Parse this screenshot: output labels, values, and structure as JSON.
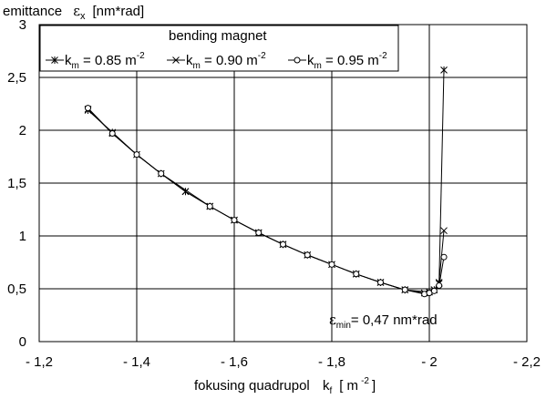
{
  "chart_data": {
    "type": "line",
    "ylabel_main": "emittance",
    "ylabel_sym": "ε",
    "ylabel_sub": "x",
    "ylabel_unit": "[nm*rad]",
    "xlabel_main": "fokusing quadrupol",
    "xlabel_sym": "k",
    "xlabel_sub": "f",
    "xlabel_unit_open": "[ m",
    "xlabel_unit_exp": "-2",
    "xlabel_unit_close": "]",
    "xlim": [
      -1.2,
      -2.2
    ],
    "ylim": [
      0,
      3
    ],
    "x_ticks": [
      -1.2,
      -1.4,
      -1.6,
      -1.8,
      -2.0,
      -2.2
    ],
    "x_tick_labels": [
      "- 1,2",
      "- 1,4",
      "- 1,6",
      "- 1,8",
      "- 2",
      "- 2,2"
    ],
    "y_ticks": [
      0,
      0.5,
      1,
      1.5,
      2,
      2.5,
      3
    ],
    "y_tick_labels": [
      "0",
      "0,5",
      "1",
      "1,5",
      "2",
      "2,5",
      "3"
    ],
    "grid": true,
    "legend": {
      "position": "top-left",
      "title": "bending magnet",
      "entries": [
        {
          "prefix": "k",
          "sub": "m",
          "text": " = 0.85 m",
          "sup": "-2",
          "marker": "star"
        },
        {
          "prefix": "k",
          "sub": "m",
          "text": " = 0.90 m",
          "sup": "-2",
          "marker": "x"
        },
        {
          "prefix": "k",
          "sub": "m",
          "text": " = 0.95 m",
          "sup": "-2",
          "marker": "circle"
        }
      ]
    },
    "annotation": {
      "sym": "ε",
      "sub": "min",
      "text": "= 0,47 nm*rad",
      "x": -2.0,
      "y": 0.47
    },
    "series": [
      {
        "marker": "star",
        "x": [
          -1.3,
          -1.35,
          -1.4,
          -1.45,
          -1.5,
          -1.55,
          -1.6,
          -1.65,
          -1.7,
          -1.75,
          -1.8,
          -1.85,
          -1.9,
          -1.95,
          -2.0,
          -2.01,
          -2.02,
          -2.03
        ],
        "y": [
          2.19,
          1.98,
          1.77,
          1.59,
          1.42,
          1.28,
          1.15,
          1.03,
          0.92,
          0.82,
          0.73,
          0.64,
          0.56,
          0.49,
          0.47,
          0.49,
          0.55,
          2.57
        ]
      },
      {
        "marker": "x",
        "x": [
          -1.3,
          -1.35,
          -1.4,
          -1.45,
          -1.5,
          -1.55,
          -1.6,
          -1.65,
          -1.7,
          -1.75,
          -1.8,
          -1.85,
          -1.9,
          -1.95,
          -1.99,
          -2.0,
          -2.01,
          -2.02,
          -2.03
        ],
        "y": [
          2.2,
          1.97,
          1.77,
          1.59,
          1.42,
          1.28,
          1.15,
          1.03,
          0.92,
          0.82,
          0.73,
          0.64,
          0.56,
          0.49,
          0.46,
          0.47,
          0.49,
          0.56,
          1.05
        ]
      },
      {
        "marker": "circle",
        "x": [
          -1.3,
          -1.35,
          -1.4,
          -1.45,
          -1.55,
          -1.6,
          -1.65,
          -1.7,
          -1.75,
          -1.8,
          -1.85,
          -1.9,
          -1.95,
          -1.99,
          -2.0,
          -2.01,
          -2.02,
          -2.03
        ],
        "y": [
          2.21,
          1.97,
          1.77,
          1.59,
          1.28,
          1.15,
          1.03,
          0.92,
          0.82,
          0.73,
          0.64,
          0.56,
          0.49,
          0.45,
          0.46,
          0.48,
          0.53,
          0.8
        ]
      }
    ]
  }
}
